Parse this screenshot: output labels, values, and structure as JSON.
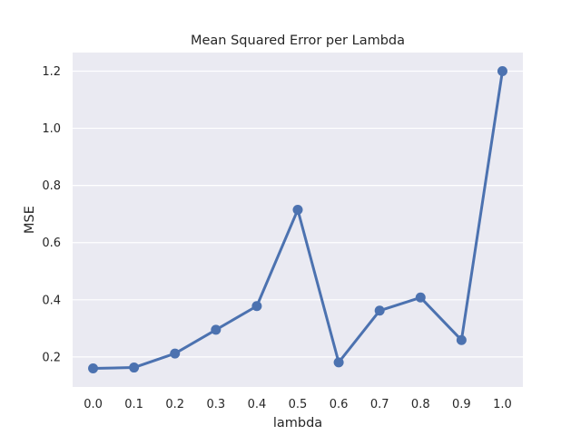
{
  "chart_data": {
    "type": "line",
    "title": "Mean Squared Error per Lambda",
    "xlabel": "lambda",
    "ylabel": "MSE",
    "categories": [
      "0.0",
      "0.1",
      "0.2",
      "0.3",
      "0.4",
      "0.5",
      "0.6",
      "0.7",
      "0.8",
      "0.9",
      "1.0"
    ],
    "series": [
      {
        "values": [
          0.16,
          0.163,
          0.212,
          0.295,
          0.378,
          0.715,
          0.181,
          0.362,
          0.408,
          0.259,
          1.2
        ]
      }
    ],
    "yticks": [
      "0.2",
      "0.4",
      "0.6",
      "0.8",
      "1.0",
      "1.2"
    ],
    "ylim": [
      0.095,
      1.265
    ],
    "grid": true,
    "legend": "none",
    "colors": {
      "line": "#4c72b0",
      "plot_background": "#eaeaf2",
      "grid": "#ffffff",
      "text": "#262626"
    }
  }
}
